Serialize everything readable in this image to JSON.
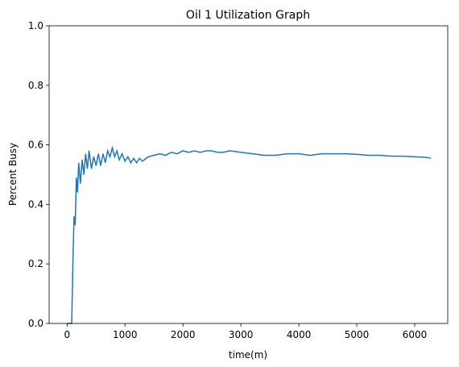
{
  "chart_data": {
    "type": "line",
    "title": "Oil 1 Utilization Graph",
    "xlabel": "time(m)",
    "ylabel": "Percent Busy",
    "x": [
      0,
      60,
      80,
      100,
      120,
      140,
      160,
      180,
      200,
      230,
      260,
      290,
      320,
      350,
      380,
      420,
      460,
      500,
      540,
      580,
      620,
      660,
      700,
      740,
      780,
      820,
      860,
      900,
      950,
      1000,
      1050,
      1100,
      1150,
      1200,
      1250,
      1300,
      1400,
      1500,
      1600,
      1700,
      1800,
      1900,
      2000,
      2100,
      2200,
      2300,
      2400,
      2500,
      2600,
      2700,
      2800,
      2900,
      3000,
      3200,
      3400,
      3600,
      3800,
      4000,
      4200,
      4400,
      4600,
      4800,
      5000,
      5200,
      5400,
      5600,
      5800,
      6000,
      6200,
      6280
    ],
    "series": [
      {
        "name": "Oil 1",
        "color": "#1f77b4",
        "values": [
          0,
          0,
          0,
          0.2,
          0.36,
          0.33,
          0.49,
          0.44,
          0.54,
          0.47,
          0.55,
          0.5,
          0.57,
          0.52,
          0.58,
          0.52,
          0.56,
          0.53,
          0.57,
          0.53,
          0.57,
          0.54,
          0.58,
          0.56,
          0.59,
          0.56,
          0.58,
          0.55,
          0.57,
          0.545,
          0.56,
          0.54,
          0.555,
          0.54,
          0.555,
          0.545,
          0.56,
          0.565,
          0.57,
          0.565,
          0.575,
          0.57,
          0.58,
          0.575,
          0.58,
          0.575,
          0.58,
          0.58,
          0.575,
          0.575,
          0.58,
          0.578,
          0.575,
          0.57,
          0.565,
          0.565,
          0.57,
          0.57,
          0.565,
          0.57,
          0.57,
          0.57,
          0.568,
          0.565,
          0.565,
          0.562,
          0.562,
          0.56,
          0.558,
          0.555
        ]
      }
    ],
    "xlim": [
      -310,
      6570
    ],
    "ylim": [
      0,
      1
    ],
    "xticks": [
      0,
      1000,
      2000,
      3000,
      4000,
      5000,
      6000
    ],
    "yticks": [
      {
        "value": 0,
        "label": "0.0"
      },
      0.2,
      0.4,
      0.6,
      0.8,
      {
        "value": 1,
        "label": "1.0"
      }
    ]
  }
}
